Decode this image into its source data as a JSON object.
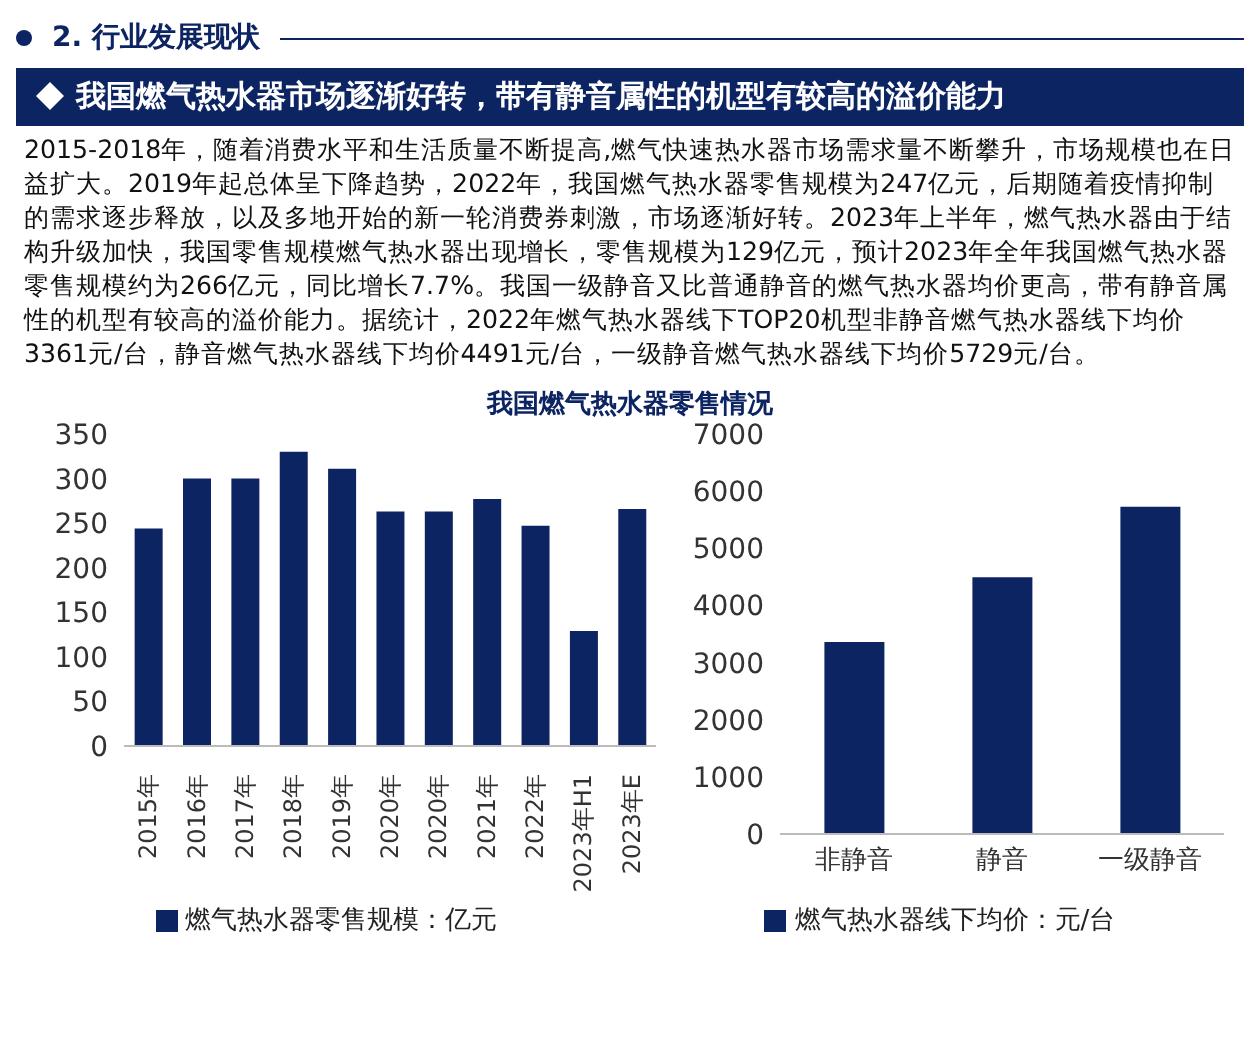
{
  "chart_data": [
    {
      "type": "bar",
      "title": "我国燃气热水器零售情况",
      "annotations": [
        "2. 行业发展现状",
        "我国燃气热水器市场逐渐好转，带有静音属性的机型有较高的溢价能力",
        "2015-2018年，随着消费水平和生活质量不断提高,燃气快速热水器市场需求量不断攀升，市场规模也在日益扩大。2019年起总体呈下降趋势，2022年，我国燃气热水器零售规模为247亿元，后期随着疫情抑制的需求逐步释放，以及多地开始的新一轮消费券刺激，市场逐渐好转。2023年上半年，燃气热水器由于结构升级加快，我国零售规模燃气热水器出现增长，零售规模为129亿元，预计2023年全年我国燃气热水器零售规模约为266亿元，同比增长7.7%。我国一级静音又比普通静音的燃气热水器均价更高，带有静音属性的机型有较高的溢价能力。据统计，2022年燃气热水器线下TOP20机型非静音燃气热水器线下均价3361元/台，静音燃气热水器线下均价4491元/台，一级静音燃气热水器线下均价5729元/台。"
      ],
      "categories": [
        "2015年",
        "2016年",
        "2017年",
        "2018年",
        "2019年",
        "2020年",
        "2020年",
        "2021年",
        "2022年",
        "2023年H1",
        "2023年E"
      ],
      "series": [
        {
          "name": "燃气热水器零售规模：亿元",
          "color": "#0d2463",
          "values": [
            244,
            300,
            300,
            330,
            311,
            263,
            263,
            277,
            247,
            129,
            266
          ]
        }
      ],
      "ylim": [
        0,
        350
      ],
      "yticks": [
        0,
        50,
        100,
        150,
        200,
        250,
        300,
        350
      ],
      "grid": false,
      "legend": "bottom"
    },
    {
      "type": "bar",
      "categories": [
        "非静音",
        "静音",
        "一级静音"
      ],
      "series": [
        {
          "name": "燃气热水器线下均价：元/台",
          "color": "#0d2463",
          "values": [
            3361,
            4491,
            5729
          ]
        }
      ],
      "ylim": [
        0,
        7000
      ],
      "yticks": [
        0,
        1000,
        2000,
        3000,
        4000,
        5000,
        6000,
        7000
      ],
      "grid": false,
      "legend": "bottom"
    }
  ]
}
